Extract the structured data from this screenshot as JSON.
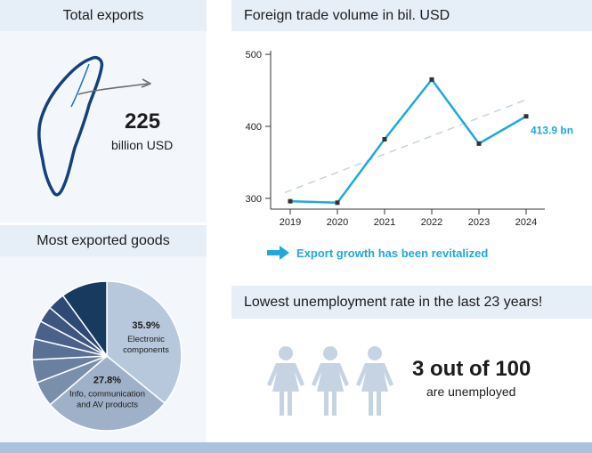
{
  "total_exports": {
    "header": "Total exports",
    "value": "225",
    "unit": "billion USD"
  },
  "most_exported": {
    "header": "Most exported goods"
  },
  "unemployment": {
    "header": "Lowest unemployment rate in the last 23 years!",
    "value": "3 out of 100",
    "caption": "are unemployed"
  },
  "trade_chart_header": "Foreign trade volume in bil. USD",
  "trend_note": "Export growth has been revitalized",
  "colors": {
    "accent": "#1ea8dc",
    "header_bg": "#e6eef8",
    "panel_bg": "#f3f7fc",
    "pie_light": "#b8c8dc",
    "pie_dark": "#173a5e",
    "person": "#c6d3e3",
    "bottom_bar": "#a9c2dd"
  },
  "chart_data": [
    {
      "type": "line",
      "title": "Foreign trade volume in bil. USD",
      "x": [
        "2019",
        "2020",
        "2021",
        "2022",
        "2023",
        "2024"
      ],
      "series": [
        {
          "name": "Foreign trade volume",
          "values": [
            296,
            294,
            382,
            465,
            376,
            413.9
          ]
        }
      ],
      "trend": {
        "from": 308,
        "to": 437
      },
      "yticks": [
        "300",
        "400",
        "500"
      ],
      "ylim": [
        285,
        505
      ],
      "data_label": "413.9 bn",
      "grid": false
    },
    {
      "type": "pie",
      "title": "Most exported goods",
      "slices": [
        {
          "label": "Electronic components",
          "percent": 35.9,
          "pct_label": "35.9%",
          "color": "#b8c8dc"
        },
        {
          "label": "Info, communication and AV products",
          "percent": 27.8,
          "pct_label": "27.8%",
          "color": "#9fb1c8"
        },
        {
          "label": "",
          "percent": 5.5,
          "color": "#7a8fac"
        },
        {
          "label": "",
          "percent": 5.0,
          "color": "#6a80a1"
        },
        {
          "label": "",
          "percent": 4.5,
          "color": "#5a7196"
        },
        {
          "label": "",
          "percent": 4.0,
          "color": "#4a628a"
        },
        {
          "label": "",
          "percent": 3.5,
          "color": "#3d557f"
        },
        {
          "label": "",
          "percent": 3.8,
          "color": "#2e4a74"
        },
        {
          "label": "",
          "percent": 10.0,
          "color": "#173a5e"
        }
      ],
      "label_lines": {
        "slice0": [
          "Electronic",
          "components"
        ],
        "slice1": [
          "Info, communication",
          "and AV products"
        ]
      }
    }
  ]
}
